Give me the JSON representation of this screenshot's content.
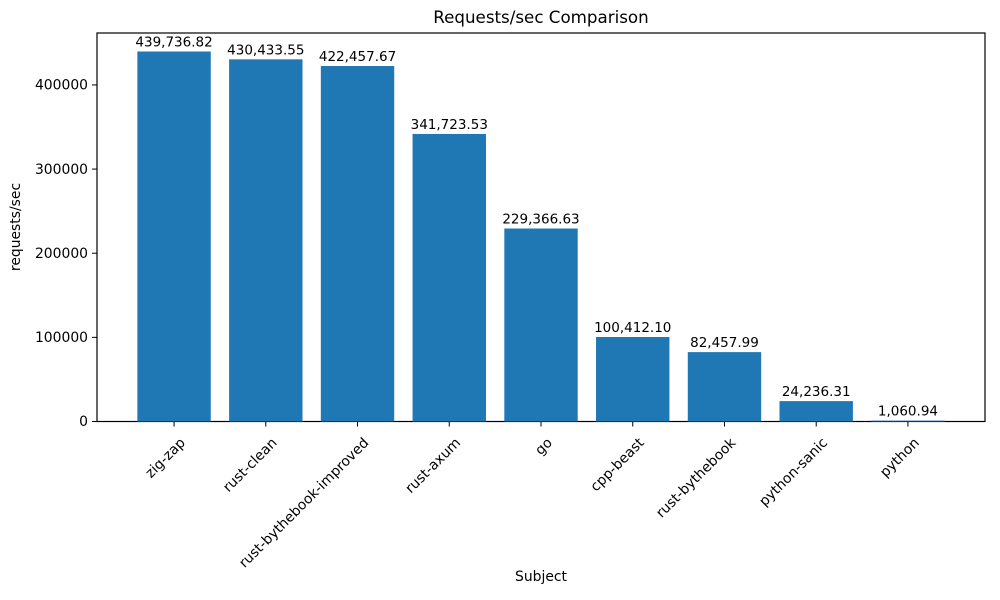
{
  "chart_data": {
    "type": "bar",
    "title": "Requests/sec Comparison",
    "xlabel": "Subject",
    "ylabel": "requests/sec",
    "categories": [
      "zig-zap",
      "rust-clean",
      "rust-bythebook-improved",
      "rust-axum",
      "go",
      "cpp-beast",
      "rust-bythebook",
      "python-sanic",
      "python"
    ],
    "values": [
      439736.82,
      430433.55,
      422457.67,
      341723.53,
      229366.63,
      100412.1,
      82457.99,
      24236.31,
      1060.94
    ],
    "value_labels": [
      "439,736.82",
      "430,433.55",
      "422,457.67",
      "341,723.53",
      "229,366.63",
      "100,412.10",
      "82,457.99",
      "24,236.31",
      "1,060.94"
    ],
    "yticks": [
      0,
      100000,
      200000,
      300000,
      400000
    ],
    "ylim": [
      0,
      461723.66
    ],
    "xlim": [
      -0.84,
      8.84
    ],
    "bar_width_fraction": 0.8,
    "bar_color": "#1f77b4",
    "axis_color": "#000000",
    "grid": "off",
    "legend": "none",
    "x_tick_rotation_deg": 45
  }
}
